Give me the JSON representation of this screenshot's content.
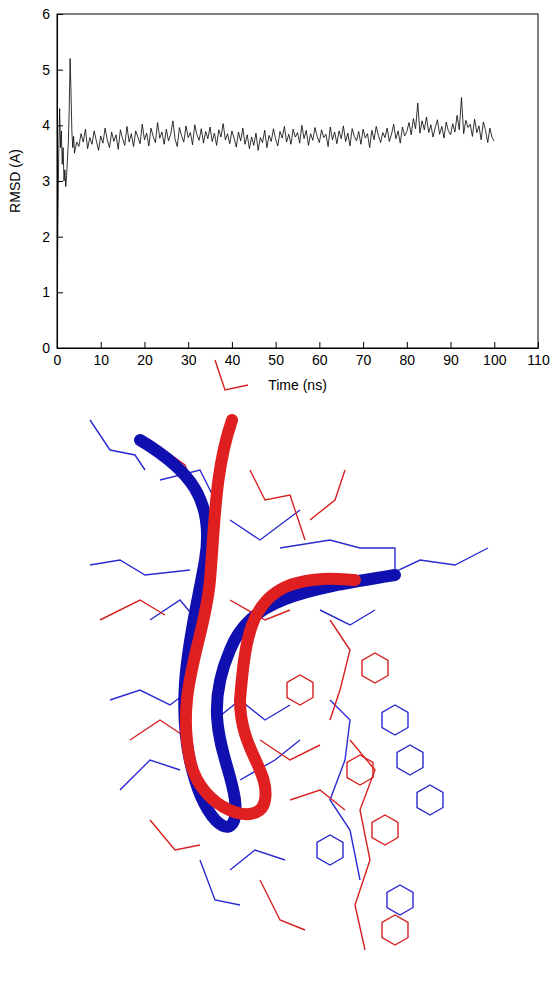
{
  "chart_data": {
    "type": "line",
    "x_label": "Time (ns)",
    "y_label": "RMSD (A)",
    "color": "#000000",
    "xlim": [
      0,
      110
    ],
    "xticks": [
      0,
      10,
      20,
      30,
      40,
      50,
      60,
      70,
      80,
      90,
      100,
      110
    ],
    "ylim": [
      0,
      6
    ],
    "yticks": [
      0,
      1,
      2,
      3,
      4,
      5,
      6
    ],
    "grid": false,
    "x": [
      0,
      0.2,
      0.4,
      0.6,
      0.8,
      1.0,
      1.2,
      1.4,
      1.6,
      1.8,
      2.0,
      2.2,
      2.4,
      2.6,
      2.8,
      3.0,
      3.2,
      3.4,
      3.6,
      3.8,
      4.0,
      4.5,
      5,
      5.5,
      6,
      6.5,
      7,
      7.5,
      8,
      8.5,
      9,
      9.5,
      10,
      10.5,
      11,
      11.5,
      12,
      12.5,
      13,
      13.5,
      14,
      14.5,
      15,
      15.5,
      16,
      16.5,
      17,
      17.5,
      18,
      18.5,
      19,
      19.5,
      20,
      20.5,
      21,
      21.5,
      22,
      22.5,
      23,
      23.5,
      24,
      24.5,
      25,
      25.5,
      26,
      26.5,
      27,
      27.5,
      28,
      28.5,
      29,
      29.5,
      30,
      30.5,
      31,
      31.5,
      32,
      32.5,
      33,
      33.5,
      34,
      34.5,
      35,
      35.5,
      36,
      36.5,
      37,
      37.5,
      38,
      38.5,
      39,
      39.5,
      40,
      40.5,
      41,
      41.5,
      42,
      42.5,
      43,
      43.5,
      44,
      44.5,
      45,
      45.5,
      46,
      46.5,
      47,
      47.5,
      48,
      48.5,
      49,
      49.5,
      50,
      50.5,
      51,
      51.5,
      52,
      52.5,
      53,
      53.5,
      54,
      54.5,
      55,
      55.5,
      56,
      56.5,
      57,
      57.5,
      58,
      58.5,
      59,
      59.5,
      60,
      60.5,
      61,
      61.5,
      62,
      62.5,
      63,
      63.5,
      64,
      64.5,
      65,
      65.5,
      66,
      66.5,
      67,
      67.5,
      68,
      68.5,
      69,
      69.5,
      70,
      70.5,
      71,
      71.5,
      72,
      72.5,
      73,
      73.5,
      74,
      74.5,
      75,
      75.5,
      76,
      76.5,
      77,
      77.5,
      78,
      78.5,
      79,
      79.5,
      80,
      80.5,
      81,
      81.5,
      82,
      82.5,
      83,
      83.5,
      84,
      84.5,
      85,
      85.5,
      86,
      86.5,
      87,
      87.5,
      88,
      88.5,
      89,
      89.5,
      90,
      90.5,
      91,
      91.5,
      92,
      92.5,
      93,
      93.5,
      94,
      94.5,
      95,
      95.5,
      96,
      96.5,
      97,
      97.5,
      98,
      98.5,
      99,
      99.5,
      100
    ],
    "values": [
      0,
      2.2,
      3.5,
      4.3,
      3.6,
      3.9,
      3.3,
      3.6,
      3.0,
      3.2,
      2.9,
      3.1,
      3.4,
      3.7,
      4.3,
      5.2,
      4.6,
      3.9,
      3.6,
      3.8,
      3.5,
      3.7,
      3.62,
      3.85,
      3.7,
      3.93,
      3.58,
      3.78,
      3.66,
      3.9,
      3.72,
      3.55,
      3.81,
      3.68,
      3.95,
      3.74,
      3.6,
      3.88,
      3.71,
      3.83,
      3.57,
      3.92,
      3.76,
      3.64,
      3.98,
      3.7,
      3.85,
      3.62,
      3.9,
      3.79,
      3.67,
      4.02,
      3.74,
      3.86,
      3.63,
      3.95,
      3.8,
      3.69,
      4.05,
      3.77,
      3.88,
      3.66,
      3.93,
      3.72,
      3.84,
      4.08,
      3.75,
      3.62,
      3.96,
      3.81,
      3.7,
      3.99,
      3.78,
      3.87,
      3.65,
      4.01,
      3.83,
      3.73,
      3.94,
      3.68,
      3.89,
      3.76,
      3.97,
      3.71,
      3.86,
      3.64,
      3.92,
      3.79,
      4.03,
      3.74,
      3.85,
      3.67,
      3.9,
      3.77,
      3.61,
      3.88,
      3.72,
      3.95,
      3.66,
      3.83,
      3.58,
      3.79,
      3.64,
      3.86,
      3.55,
      3.78,
      3.69,
      3.91,
      3.6,
      3.82,
      3.71,
      3.94,
      3.75,
      3.63,
      3.89,
      3.77,
      3.98,
      3.7,
      3.84,
      3.66,
      3.93,
      3.79,
      3.87,
      3.68,
      4.0,
      3.76,
      3.91,
      3.64,
      3.85,
      3.73,
      3.96,
      3.8,
      3.69,
      3.92,
      3.78,
      3.84,
      3.62,
      3.97,
      3.74,
      3.88,
      3.67,
      3.9,
      3.76,
      3.99,
      3.71,
      3.86,
      3.63,
      3.94,
      3.8,
      3.72,
      3.89,
      3.66,
      3.93,
      3.77,
      3.85,
      3.6,
      3.91,
      3.74,
      3.98,
      3.82,
      3.69,
      3.87,
      3.78,
      3.95,
      3.71,
      3.84,
      4.02,
      3.76,
      3.9,
      3.68,
      3.97,
      3.81,
      3.89,
      4.05,
      3.83,
      4.12,
      3.94,
      4.4,
      3.86,
      4.08,
      3.92,
      4.15,
      3.87,
      4.01,
      3.79,
      3.96,
      4.1,
      3.84,
      3.98,
      3.77,
      4.06,
      3.9,
      3.83,
      4.03,
      3.88,
      4.18,
      3.92,
      4.5,
      3.85,
      4.09,
      3.96,
      4.02,
      3.8,
      4.11,
      3.87,
      3.99,
      3.74,
      4.06,
      3.91,
      3.69,
      3.95,
      3.78,
      3.72
    ]
  }
}
